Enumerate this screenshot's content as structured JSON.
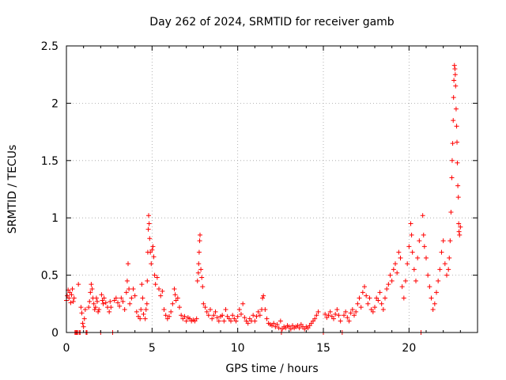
{
  "chart_data": {
    "type": "scatter",
    "title": "Day 262 of 2024, SRMTID for receiver gamb",
    "xlabel": "GPS time / hours",
    "ylabel": "SRMTID / TECUs",
    "xlim": [
      0,
      24
    ],
    "ylim": [
      0,
      2.5
    ],
    "xticks": [
      0,
      5,
      10,
      15,
      20
    ],
    "xtick_labels": [
      "0",
      "5",
      "10",
      "15",
      "20"
    ],
    "yticks": [
      0,
      0.5,
      1,
      1.5,
      2,
      2.5
    ],
    "ytick_labels": [
      "0",
      "0.5",
      "1",
      "1.5",
      "2",
      "2.5"
    ],
    "grid": true,
    "marker": "+",
    "color": "#ff0000",
    "series": [
      {
        "name": "SRMTID",
        "points": [
          [
            0.0,
            0.28
          ],
          [
            0.05,
            0.32
          ],
          [
            0.1,
            0.37
          ],
          [
            0.15,
            0.3
          ],
          [
            0.2,
            0.35
          ],
          [
            0.25,
            0.26
          ],
          [
            0.3,
            0.33
          ],
          [
            0.35,
            0.38
          ],
          [
            0.4,
            0.27
          ],
          [
            0.45,
            0.3
          ],
          [
            0.5,
            0.0
          ],
          [
            0.55,
            0.0
          ],
          [
            0.6,
            0.0
          ],
          [
            0.65,
            0.0
          ],
          [
            0.7,
            0.42
          ],
          [
            0.75,
            0.0
          ],
          [
            0.8,
            0.0
          ],
          [
            0.85,
            0.22
          ],
          [
            0.9,
            0.17
          ],
          [
            0.95,
            0.08
          ],
          [
            1.0,
            0.05
          ],
          [
            1.05,
            0.12
          ],
          [
            1.1,
            0.2
          ],
          [
            1.15,
            0.0
          ],
          [
            1.2,
            0.0
          ],
          [
            1.3,
            0.22
          ],
          [
            1.35,
            0.27
          ],
          [
            1.4,
            0.35
          ],
          [
            1.45,
            0.42
          ],
          [
            1.5,
            0.38
          ],
          [
            1.55,
            0.3
          ],
          [
            1.6,
            0.25
          ],
          [
            1.65,
            0.2
          ],
          [
            1.7,
            0.22
          ],
          [
            1.75,
            0.3
          ],
          [
            1.8,
            0.27
          ],
          [
            1.85,
            0.18
          ],
          [
            1.9,
            0.2
          ],
          [
            2.0,
            0.0
          ],
          [
            2.05,
            0.33
          ],
          [
            2.1,
            0.28
          ],
          [
            2.15,
            0.25
          ],
          [
            2.2,
            0.3
          ],
          [
            2.3,
            0.26
          ],
          [
            2.4,
            0.22
          ],
          [
            2.5,
            0.18
          ],
          [
            2.55,
            0.27
          ],
          [
            2.6,
            0.22
          ],
          [
            2.7,
            0.0
          ],
          [
            2.8,
            0.28
          ],
          [
            2.9,
            0.3
          ],
          [
            3.0,
            0.26
          ],
          [
            3.1,
            0.23
          ],
          [
            3.2,
            0.3
          ],
          [
            3.3,
            0.27
          ],
          [
            3.4,
            0.2
          ],
          [
            3.5,
            0.35
          ],
          [
            3.55,
            0.45
          ],
          [
            3.6,
            0.6
          ],
          [
            3.65,
            0.38
          ],
          [
            3.7,
            0.25
          ],
          [
            3.8,
            0.3
          ],
          [
            3.9,
            0.38
          ],
          [
            4.0,
            0.32
          ],
          [
            4.1,
            0.18
          ],
          [
            4.2,
            0.14
          ],
          [
            4.3,
            0.12
          ],
          [
            4.35,
            0.2
          ],
          [
            4.4,
            0.42
          ],
          [
            4.45,
            0.3
          ],
          [
            4.5,
            0.16
          ],
          [
            4.6,
            0.12
          ],
          [
            4.65,
            0.2
          ],
          [
            4.7,
            0.25
          ],
          [
            4.72,
            0.45
          ],
          [
            4.75,
            0.7
          ],
          [
            4.78,
            0.9
          ],
          [
            4.8,
            1.02
          ],
          [
            4.83,
            0.95
          ],
          [
            4.86,
            0.82
          ],
          [
            4.9,
            0.7
          ],
          [
            4.95,
            0.6
          ],
          [
            5.0,
            0.72
          ],
          [
            5.05,
            0.75
          ],
          [
            5.1,
            0.66
          ],
          [
            5.15,
            0.5
          ],
          [
            5.2,
            0.42
          ],
          [
            5.3,
            0.48
          ],
          [
            5.4,
            0.38
          ],
          [
            5.5,
            0.32
          ],
          [
            5.6,
            0.36
          ],
          [
            5.7,
            0.2
          ],
          [
            5.8,
            0.15
          ],
          [
            5.9,
            0.12
          ],
          [
            6.0,
            0.14
          ],
          [
            6.1,
            0.18
          ],
          [
            6.2,
            0.25
          ],
          [
            6.3,
            0.38
          ],
          [
            6.35,
            0.33
          ],
          [
            6.4,
            0.28
          ],
          [
            6.5,
            0.3
          ],
          [
            6.6,
            0.22
          ],
          [
            6.7,
            0.15
          ],
          [
            6.8,
            0.12
          ],
          [
            6.9,
            0.14
          ],
          [
            7.0,
            0.1
          ],
          [
            7.1,
            0.13
          ],
          [
            7.2,
            0.12
          ],
          [
            7.3,
            0.1
          ],
          [
            7.4,
            0.11
          ],
          [
            7.5,
            0.1
          ],
          [
            7.6,
            0.12
          ],
          [
            7.65,
            0.45
          ],
          [
            7.7,
            0.52
          ],
          [
            7.72,
            0.6
          ],
          [
            7.75,
            0.7
          ],
          [
            7.78,
            0.8
          ],
          [
            7.8,
            0.85
          ],
          [
            7.85,
            0.55
          ],
          [
            7.9,
            0.48
          ],
          [
            7.95,
            0.4
          ],
          [
            8.0,
            0.25
          ],
          [
            8.1,
            0.22
          ],
          [
            8.2,
            0.18
          ],
          [
            8.3,
            0.15
          ],
          [
            8.4,
            0.2
          ],
          [
            8.5,
            0.12
          ],
          [
            8.6,
            0.15
          ],
          [
            8.7,
            0.18
          ],
          [
            8.8,
            0.13
          ],
          [
            8.9,
            0.1
          ],
          [
            9.0,
            0.14
          ],
          [
            9.1,
            0.15
          ],
          [
            9.2,
            0.1
          ],
          [
            9.3,
            0.2
          ],
          [
            9.4,
            0.14
          ],
          [
            9.5,
            0.12
          ],
          [
            9.6,
            0.1
          ],
          [
            9.7,
            0.15
          ],
          [
            9.8,
            0.12
          ],
          [
            9.9,
            0.1
          ],
          [
            10.0,
            0.14
          ],
          [
            10.1,
            0.2
          ],
          [
            10.2,
            0.16
          ],
          [
            10.3,
            0.25
          ],
          [
            10.4,
            0.13
          ],
          [
            10.5,
            0.1
          ],
          [
            10.6,
            0.08
          ],
          [
            10.7,
            0.12
          ],
          [
            10.8,
            0.1
          ],
          [
            10.9,
            0.15
          ],
          [
            11.0,
            0.1
          ],
          [
            11.1,
            0.14
          ],
          [
            11.2,
            0.18
          ],
          [
            11.3,
            0.15
          ],
          [
            11.4,
            0.2
          ],
          [
            11.45,
            0.3
          ],
          [
            11.5,
            0.32
          ],
          [
            11.6,
            0.2
          ],
          [
            11.7,
            0.12
          ],
          [
            11.8,
            0.08
          ],
          [
            11.9,
            0.07
          ],
          [
            12.0,
            0.06
          ],
          [
            12.1,
            0.08
          ],
          [
            12.2,
            0.05
          ],
          [
            12.3,
            0.07
          ],
          [
            12.4,
            0.04
          ],
          [
            12.5,
            0.1
          ],
          [
            12.55,
            0.0
          ],
          [
            12.6,
            0.03
          ],
          [
            12.7,
            0.05
          ],
          [
            12.8,
            0.04
          ],
          [
            12.9,
            0.06
          ],
          [
            13.0,
            0.05
          ],
          [
            13.1,
            0.03
          ],
          [
            13.2,
            0.06
          ],
          [
            13.3,
            0.04
          ],
          [
            13.4,
            0.05
          ],
          [
            13.5,
            0.06
          ],
          [
            13.6,
            0.04
          ],
          [
            13.7,
            0.07
          ],
          [
            13.8,
            0.05
          ],
          [
            13.9,
            0.03
          ],
          [
            14.0,
            0.05
          ],
          [
            14.1,
            0.04
          ],
          [
            14.2,
            0.06
          ],
          [
            14.3,
            0.08
          ],
          [
            14.4,
            0.1
          ],
          [
            14.5,
            0.12
          ],
          [
            14.6,
            0.15
          ],
          [
            14.7,
            0.18
          ],
          [
            15.0,
            0.0
          ],
          [
            15.1,
            0.16
          ],
          [
            15.2,
            0.13
          ],
          [
            15.3,
            0.15
          ],
          [
            15.4,
            0.18
          ],
          [
            15.5,
            0.14
          ],
          [
            15.6,
            0.12
          ],
          [
            15.7,
            0.16
          ],
          [
            15.8,
            0.2
          ],
          [
            15.9,
            0.15
          ],
          [
            16.0,
            0.1
          ],
          [
            16.1,
            0.0
          ],
          [
            16.2,
            0.15
          ],
          [
            16.3,
            0.18
          ],
          [
            16.4,
            0.13
          ],
          [
            16.5,
            0.1
          ],
          [
            16.6,
            0.17
          ],
          [
            16.7,
            0.2
          ],
          [
            16.8,
            0.15
          ],
          [
            16.9,
            0.18
          ],
          [
            17.0,
            0.25
          ],
          [
            17.1,
            0.3
          ],
          [
            17.2,
            0.22
          ],
          [
            17.3,
            0.35
          ],
          [
            17.4,
            0.4
          ],
          [
            17.5,
            0.32
          ],
          [
            17.6,
            0.25
          ],
          [
            17.7,
            0.3
          ],
          [
            17.8,
            0.2
          ],
          [
            17.9,
            0.18
          ],
          [
            18.0,
            0.22
          ],
          [
            18.1,
            0.3
          ],
          [
            18.2,
            0.28
          ],
          [
            18.3,
            0.35
          ],
          [
            18.4,
            0.25
          ],
          [
            18.5,
            0.2
          ],
          [
            18.6,
            0.3
          ],
          [
            18.7,
            0.38
          ],
          [
            18.8,
            0.42
          ],
          [
            18.9,
            0.5
          ],
          [
            19.0,
            0.45
          ],
          [
            19.1,
            0.55
          ],
          [
            19.2,
            0.6
          ],
          [
            19.3,
            0.52
          ],
          [
            19.4,
            0.7
          ],
          [
            19.5,
            0.65
          ],
          [
            19.6,
            0.4
          ],
          [
            19.7,
            0.3
          ],
          [
            19.8,
            0.45
          ],
          [
            19.9,
            0.6
          ],
          [
            20.0,
            0.75
          ],
          [
            20.1,
            0.95
          ],
          [
            20.15,
            0.85
          ],
          [
            20.2,
            0.7
          ],
          [
            20.3,
            0.55
          ],
          [
            20.4,
            0.45
          ],
          [
            20.5,
            0.65
          ],
          [
            20.6,
            0.8
          ],
          [
            20.7,
            0.0
          ],
          [
            20.8,
            1.02
          ],
          [
            20.85,
            0.85
          ],
          [
            20.9,
            0.75
          ],
          [
            21.0,
            0.65
          ],
          [
            21.1,
            0.5
          ],
          [
            21.2,
            0.4
          ],
          [
            21.3,
            0.3
          ],
          [
            21.4,
            0.2
          ],
          [
            21.5,
            0.25
          ],
          [
            21.6,
            0.35
          ],
          [
            21.7,
            0.45
          ],
          [
            21.8,
            0.55
          ],
          [
            21.9,
            0.7
          ],
          [
            22.0,
            0.8
          ],
          [
            22.1,
            0.6
          ],
          [
            22.2,
            0.5
          ],
          [
            22.3,
            0.55
          ],
          [
            22.35,
            0.65
          ],
          [
            22.4,
            0.8
          ],
          [
            22.45,
            1.05
          ],
          [
            22.5,
            1.35
          ],
          [
            22.52,
            1.5
          ],
          [
            22.55,
            1.65
          ],
          [
            22.58,
            1.85
          ],
          [
            22.6,
            2.05
          ],
          [
            22.62,
            2.2
          ],
          [
            22.65,
            2.33
          ],
          [
            22.68,
            2.3
          ],
          [
            22.7,
            2.25
          ],
          [
            22.72,
            2.15
          ],
          [
            22.75,
            1.95
          ],
          [
            22.78,
            1.8
          ],
          [
            22.8,
            1.66
          ],
          [
            22.82,
            1.48
          ],
          [
            22.85,
            1.28
          ],
          [
            22.88,
            1.18
          ],
          [
            22.9,
            0.95
          ],
          [
            22.92,
            0.88
          ],
          [
            22.95,
            0.85
          ],
          [
            23.0,
            0.92
          ]
        ]
      }
    ]
  }
}
